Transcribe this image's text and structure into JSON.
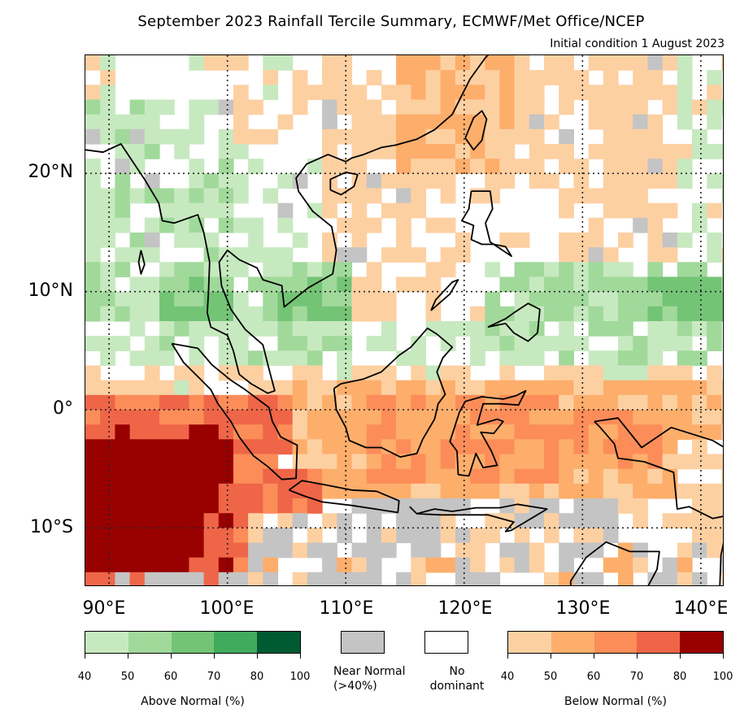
{
  "header": {
    "title": "September 2023 Rainfall Tercile Summary, ECMWF/Met Office/NCEP",
    "subtitle": "Initial condition 1 August 2023"
  },
  "axes": {
    "lat_labels": [
      {
        "text": "20°N",
        "value": 20
      },
      {
        "text": "10°N",
        "value": 10
      },
      {
        "text": "0°",
        "value": 0
      },
      {
        "text": "10°S",
        "value": -10
      }
    ],
    "lon_labels": [
      {
        "text": "90°E",
        "value": 90
      },
      {
        "text": "100°E",
        "value": 100
      },
      {
        "text": "110°E",
        "value": 110
      },
      {
        "text": "120°E",
        "value": 120
      },
      {
        "text": "130°E",
        "value": 130
      },
      {
        "text": "140°E",
        "value": 140
      }
    ],
    "lon_range": [
      88,
      142
    ],
    "lat_range": [
      -15,
      30
    ]
  },
  "colors": {
    "above": [
      "#c7e9c0",
      "#a1d99b",
      "#74c476",
      "#41ab5d",
      "#005a32"
    ],
    "below": [
      "#fdd0a2",
      "#fdae6b",
      "#fc8d59",
      "#ef6548",
      "#990000"
    ],
    "near_normal": "#c4c4c4",
    "no_dominant": "#ffffff"
  },
  "legend": {
    "above_normal": {
      "label": "Above Normal (%)",
      "ticks": [
        "40",
        "50",
        "60",
        "70",
        "80",
        "100"
      ]
    },
    "near_normal": {
      "label_line1": "Near Normal",
      "label_line2": "(>40%)"
    },
    "no_dominant": {
      "label_line1": "No",
      "label_line2": "dominant"
    },
    "below_normal": {
      "label": "Below Normal (%)",
      "ticks": [
        "40",
        "50",
        "60",
        "70",
        "80",
        "100"
      ]
    }
  }
}
